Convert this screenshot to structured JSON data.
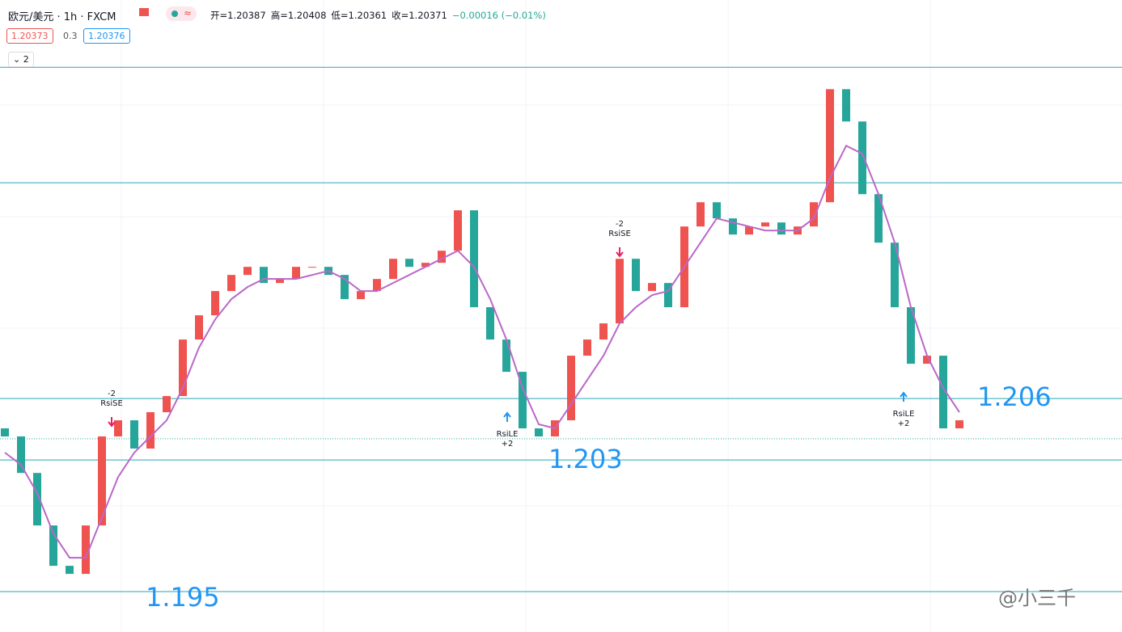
{
  "header": {
    "symbol": "欧元/美元 · 1h · FXCM",
    "ohlc": [
      "开=1.20387",
      "高=1.20408",
      "低=1.20361",
      "收=1.20371",
      "−0.00016 (−0.01%)"
    ],
    "sell": "1.20373",
    "spread": "0.3",
    "buy": "1.20376",
    "indicators": "2"
  },
  "watermark": "@小三千",
  "chart_data": {
    "type": "candlestick",
    "ylim": [
      1.1927,
      1.2287
    ],
    "up_color": "#ef5350",
    "down_color": "#26a69a",
    "open": [
      1.2043,
      1.20384,
      1.20176,
      1.19877,
      1.19647,
      1.19601,
      1.19877,
      1.20384,
      1.20476,
      1.20315,
      1.20522,
      1.20614,
      1.20936,
      1.21074,
      1.21212,
      1.21304,
      1.2135,
      1.21258,
      1.21281,
      1.2135,
      1.2135,
      1.21304,
      1.21166,
      1.21212,
      1.21281,
      1.21396,
      1.2135,
      1.21373,
      1.21442,
      1.21672,
      1.2112,
      1.20936,
      1.20752,
      1.2043,
      1.20384,
      1.20476,
      1.20844,
      1.20936,
      1.21028,
      1.21396,
      1.21212,
      1.21258,
      1.2112,
      1.2158,
      1.21718,
      1.21626,
      1.21534,
      1.2158,
      1.21603,
      1.21534,
      1.2158,
      1.21718,
      1.22362,
      1.22178,
      1.21764,
      1.21488,
      1.2112,
      1.20798,
      1.20844,
      1.2043
    ],
    "close": [
      1.20384,
      1.20176,
      1.19877,
      1.19647,
      1.19601,
      1.19877,
      1.20384,
      1.20476,
      1.20315,
      1.20522,
      1.20614,
      1.20936,
      1.21074,
      1.21212,
      1.21304,
      1.2135,
      1.21258,
      1.21281,
      1.2135,
      1.2135,
      1.21304,
      1.21166,
      1.21212,
      1.21281,
      1.21396,
      1.2135,
      1.21373,
      1.21442,
      1.21672,
      1.2112,
      1.20936,
      1.20752,
      1.2043,
      1.20384,
      1.20476,
      1.20844,
      1.20936,
      1.21028,
      1.21396,
      1.21212,
      1.21258,
      1.2112,
      1.2158,
      1.21718,
      1.21626,
      1.21534,
      1.2158,
      1.21603,
      1.21534,
      1.2158,
      1.21718,
      1.22362,
      1.22178,
      1.21764,
      1.21488,
      1.2112,
      1.20798,
      1.20844,
      1.2043,
      1.20476
    ],
    "series": [
      {
        "color": "#ba68c8",
        "values": [
          1.20292,
          1.20222,
          1.20061,
          1.19831,
          1.19693,
          1.19693,
          1.19923,
          1.20153,
          1.20292,
          1.20384,
          1.20476,
          1.2066,
          1.2089,
          1.21051,
          1.21166,
          1.21235,
          1.21281,
          1.21281,
          1.21281,
          1.21304,
          1.21327,
          1.21281,
          1.21212,
          1.21212,
          1.21258,
          1.21304,
          1.2135,
          1.21396,
          1.21442,
          1.2135,
          1.21166,
          1.20936,
          1.2066,
          1.20453,
          1.2043,
          1.20568,
          1.20706,
          1.20844,
          1.21028,
          1.2112,
          1.21189,
          1.21212,
          1.2135,
          1.21488,
          1.21626,
          1.21603,
          1.2158,
          1.21557,
          1.21557,
          1.21557,
          1.21626,
          1.21856,
          1.2204,
          1.21994,
          1.21764,
          1.21488,
          1.2112,
          1.20844,
          1.2066,
          1.20522
        ]
      }
    ],
    "levels": [
      1.22487,
      1.21829,
      1.206,
      1.2025,
      1.195
    ],
    "level_color": "#26a6b8",
    "last_price": 1.20371,
    "annotations": [
      "1.206",
      "1.203",
      "1.195"
    ],
    "signals": [
      [
        "-2",
        "RsiSE"
      ],
      [
        "RsiLE",
        "+2"
      ],
      [
        "-2",
        "RsiSE"
      ],
      [
        "RsiLE",
        "+2"
      ]
    ]
  }
}
